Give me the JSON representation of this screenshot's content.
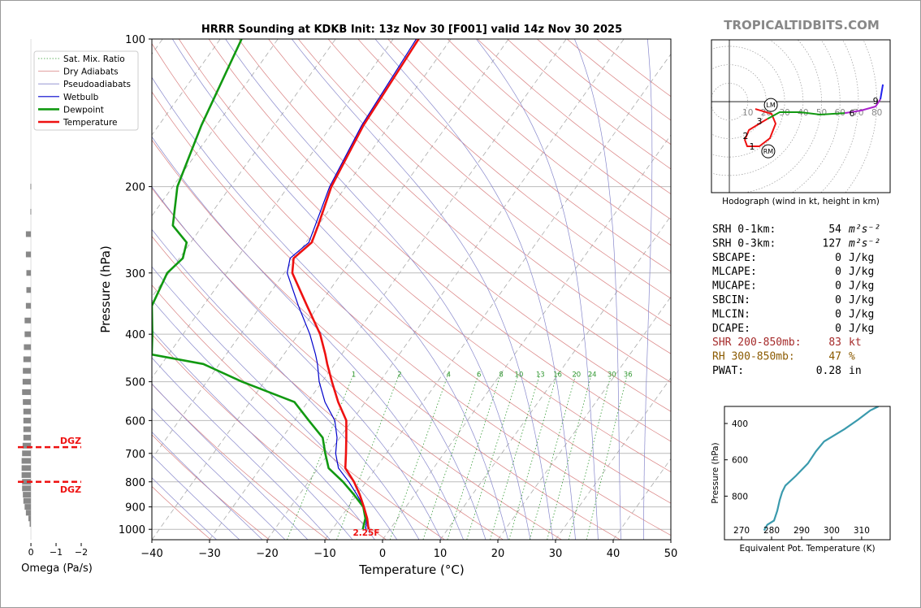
{
  "brand": "TROPICALTIDBITS.COM",
  "chart_data": [
    {
      "type": "skewt",
      "title": "HRRR Sounding at KDKB Init: 13z Nov 30 [F001] valid 14z Nov 30 2025",
      "x_label": "Temperature (°C)",
      "y_label": "Pressure (hPa)",
      "xlim": [
        -40,
        50
      ],
      "xticks": [
        {
          "value": -40,
          "label": "−40"
        },
        {
          "value": -30,
          "label": "−30"
        },
        {
          "value": -20,
          "label": "−20"
        },
        {
          "value": -10,
          "label": "−10"
        },
        0,
        10,
        20,
        30,
        40,
        50
      ],
      "ylim": [
        1050,
        100
      ],
      "y_log": true,
      "yticks": [
        100,
        200,
        300,
        400,
        500,
        600,
        700,
        800,
        900,
        1000
      ],
      "grid": true,
      "pressure": [
        1000,
        950,
        900,
        850,
        800,
        750,
        700,
        650,
        600,
        550,
        500,
        460,
        440,
        400,
        350,
        300,
        280,
        260,
        240,
        200,
        150,
        100
      ],
      "series": [
        {
          "name": "Wetbulb",
          "color": "#0000cc",
          "width": 1.2,
          "values": [
            -4.2,
            -5.4,
            -7.3,
            -10,
            -13,
            -16.5,
            -18.8,
            -20.5,
            -23,
            -27,
            -30.5,
            -33,
            -34.5,
            -38,
            -43.5,
            -49.5,
            -50.8,
            -49.5,
            -50.5,
            -52.8,
            -54.8,
            -56
          ]
        },
        {
          "name": "Dewpoint",
          "color": "#119911",
          "width": 2.6,
          "values": [
            -4.7,
            -5.6,
            -7.4,
            -10.5,
            -14,
            -18.2,
            -20.6,
            -23,
            -27.5,
            -32.3,
            -43.9,
            -52.8,
            -62.9,
            -65.3,
            -68.9,
            -70.3,
            -69.4,
            -70.7,
            -75.2,
            -79.2,
            -82.6,
            -86.3
          ]
        },
        {
          "name": "Temperature",
          "color": "#ee1111",
          "width": 2.6,
          "values": [
            -3.7,
            -5.3,
            -7.3,
            -9.5,
            -12.1,
            -15.3,
            -17,
            -18.9,
            -21,
            -24.7,
            -28.3,
            -31.3,
            -32.8,
            -36.2,
            -42,
            -48.6,
            -50.2,
            -49,
            -50,
            -52.5,
            -54.5,
            -55.6
          ]
        }
      ],
      "background_lines": [
        {
          "name": "Sat. Mix. Ratio",
          "color": "#339933"
        },
        {
          "name": "Dry Adiabats",
          "color": "#d98080"
        },
        {
          "name": "Pseudoadiabats",
          "color": "#8888cc"
        }
      ],
      "mixing_ratio_labels": [
        1,
        2,
        4,
        6,
        8,
        10,
        13,
        16,
        20,
        24,
        30,
        36
      ],
      "annotation": {
        "text": "2.25F",
        "color": "#ee1111"
      }
    },
    {
      "type": "omega",
      "x_label": "Omega (Pa/s)",
      "xlim": [
        1.1,
        -2.0
      ],
      "xticks": [
        0,
        {
          "value": -1,
          "label": "−1"
        },
        {
          "value": -2,
          "label": "−2"
        }
      ],
      "ylim": [
        1050,
        100
      ],
      "y_log": true,
      "color": "#888888",
      "pressure": [
        975,
        950,
        925,
        900,
        875,
        850,
        825,
        800,
        775,
        750,
        725,
        700,
        675,
        650,
        625,
        600,
        575,
        550,
        525,
        500,
        475,
        450,
        425,
        400,
        375,
        350,
        325,
        300,
        275,
        250,
        225,
        200
      ],
      "values": [
        0.05,
        0.1,
        0.2,
        0.25,
        0.3,
        0.32,
        0.35,
        0.35,
        0.37,
        0.37,
        0.37,
        0.35,
        0.33,
        0.3,
        0.3,
        0.3,
        0.3,
        0.32,
        0.35,
        0.33,
        0.32,
        0.3,
        0.28,
        0.25,
        0.25,
        0.2,
        0.18,
        0.18,
        0.2,
        0.2,
        0.02,
        0.02
      ],
      "dgz": [
        {
          "label": "DGZ",
          "pressure": 680,
          "color": "#ee1111"
        },
        {
          "label": "DGZ",
          "pressure": 800,
          "color": "#ee1111"
        }
      ]
    },
    {
      "type": "hodograph",
      "caption": "Hodograph (wind in kt, height in km)",
      "xlim": [
        -9.7,
        87.2
      ],
      "ylim": [
        -49.3,
        33.5
      ],
      "rings": [
        10,
        20,
        30,
        40,
        50,
        60,
        70,
        80
      ],
      "segments": [
        {
          "color": "#ee1111",
          "u": [
            14.1,
            22.9,
            25.1,
            22.0,
            16.3,
            9.7,
            8.4,
            10.6,
            16.3,
            20.7
          ],
          "v": [
            -4.0,
            -6.6,
            -11.9,
            -19.8,
            -24.2,
            -24.2,
            -20.7,
            -15.4,
            -11.9,
            -9.3
          ]
        },
        {
          "color": "#119911",
          "u": [
            20.7,
            27.3,
            38.3,
            49.3,
            62.6
          ],
          "v": [
            -9.3,
            -5.7,
            -5.7,
            -7.0,
            -6.2
          ]
        },
        {
          "color": "#aa22cc",
          "u": [
            62.6,
            71.4,
            79.3,
            81.9
          ],
          "v": [
            -6.2,
            -4.8,
            -2.6,
            1.3
          ]
        },
        {
          "color": "#2222ee",
          "u": [
            81.9,
            83.3
          ],
          "v": [
            1.3,
            9.3
          ]
        }
      ],
      "height_marks": [
        {
          "height": 1,
          "u": 12.3,
          "v": -24.2
        },
        {
          "height": 2,
          "u": 8.8,
          "v": -18.5
        },
        {
          "height": 3,
          "u": 16.3,
          "v": -10.6
        },
        {
          "height": 6,
          "u": 66.5,
          "v": -6.2
        },
        {
          "height": 9,
          "u": 79.3,
          "v": 0.4
        }
      ],
      "motions": [
        {
          "label": "LM",
          "u": 22.5,
          "v": -1.8
        },
        {
          "label": "RM",
          "u": 21.1,
          "v": -26.9
        }
      ]
    },
    {
      "type": "line",
      "x_label": "Equivalent Pot. Temperature (K)",
      "y_label": "Pressure (hPa)",
      "color": "#3a9aad",
      "xlim": [
        264.3,
        319.5
      ],
      "xticks": [
        270,
        280,
        290,
        300,
        310
      ],
      "ylim": [
        1040,
        306
      ],
      "yticks": [
        400,
        600,
        800
      ],
      "x": [
        277.5,
        278.6,
        280.8,
        281.9,
        282.7,
        283.5,
        284.6,
        288.1,
        292.1,
        294.8,
        297.5,
        300.2,
        304.3,
        308.9,
        312.9,
        315.6
      ],
      "values": [
        989,
        957,
        935,
        881,
        822,
        778,
        742,
        688,
        620,
        553,
        499,
        472,
        431,
        378,
        328,
        306
      ]
    }
  ],
  "stats": [
    {
      "label": "SRH 0-1km:",
      "value": 54,
      "unit": "m²s⁻²",
      "color": "#000000"
    },
    {
      "label": "SRH 0-3km:",
      "value": 127,
      "unit": "m²s⁻²",
      "color": "#000000"
    },
    {
      "label": "SBCAPE:",
      "value": 0,
      "unit": "J/kg",
      "color": "#000000"
    },
    {
      "label": "MLCAPE:",
      "value": 0,
      "unit": "J/kg",
      "color": "#000000"
    },
    {
      "label": "MUCAPE:",
      "value": 0,
      "unit": "J/kg",
      "color": "#000000"
    },
    {
      "label": "SBCIN:",
      "value": 0,
      "unit": "J/kg",
      "color": "#000000"
    },
    {
      "label": "MLCIN:",
      "value": 0,
      "unit": "J/kg",
      "color": "#000000"
    },
    {
      "label": "DCAPE:",
      "value": 0,
      "unit": "J/kg",
      "color": "#000000"
    },
    {
      "label": "SHR 200-850mb:",
      "value": 83,
      "unit": "kt",
      "color": "#a52a2a"
    },
    {
      "label": "RH 300-850mb:",
      "value": 47,
      "unit": "%",
      "color": "#8b5a00"
    },
    {
      "label": "PWAT:",
      "value": 0.28,
      "unit": "in",
      "color": "#000000"
    }
  ]
}
